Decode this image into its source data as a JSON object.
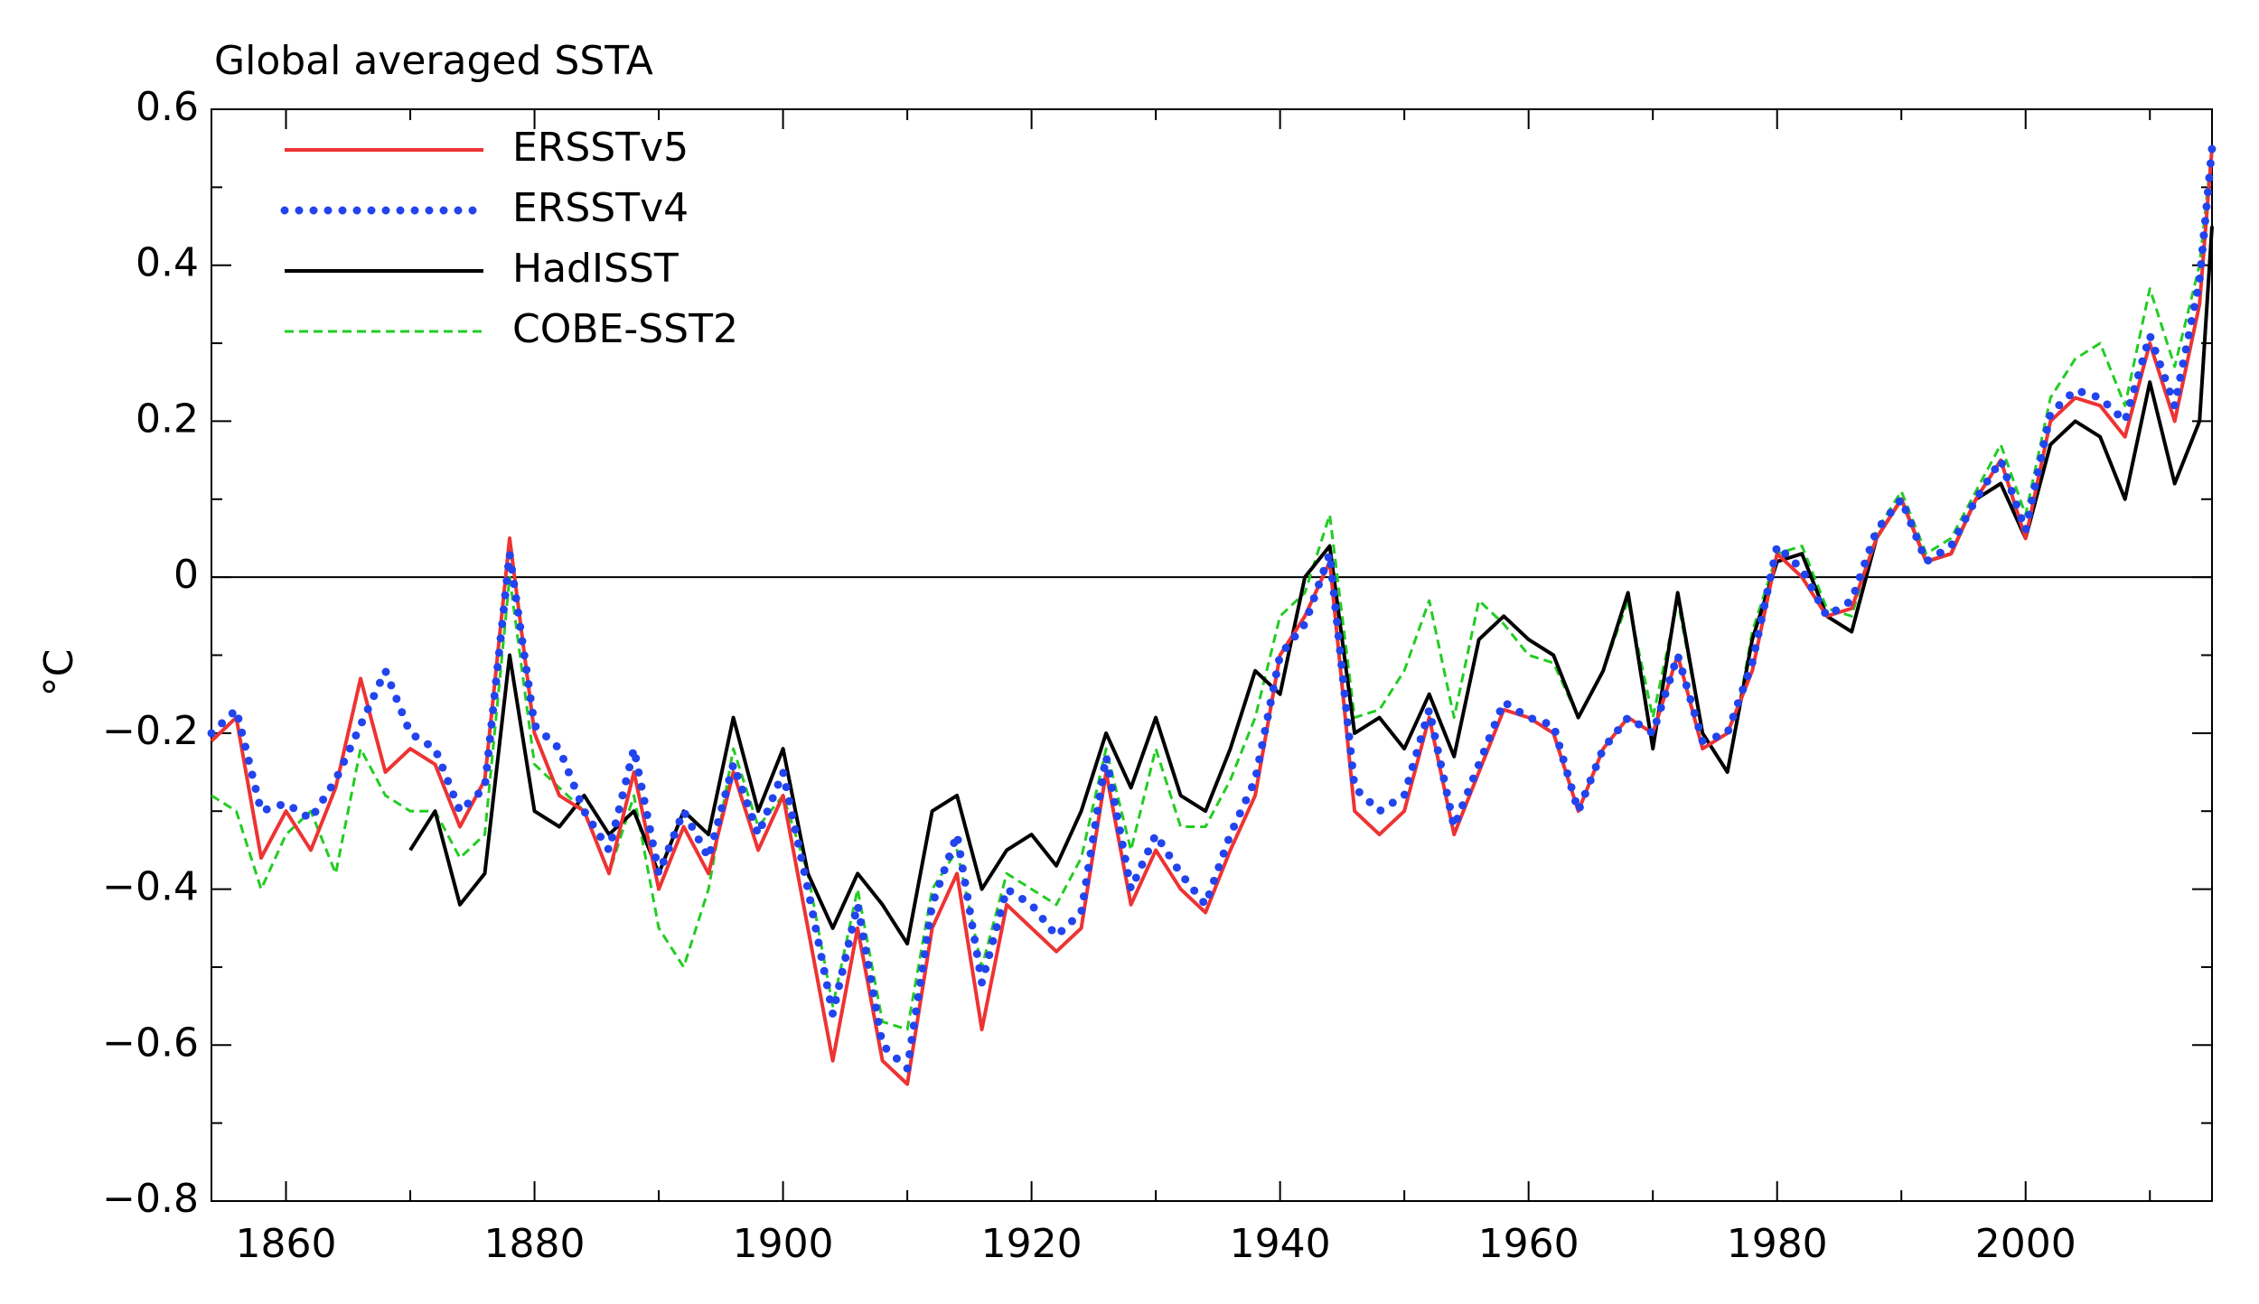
{
  "chart_data": {
    "type": "line",
    "title": "Global averaged SSTA",
    "y_label": "°C",
    "x": [
      1854,
      1856,
      1858,
      1860,
      1862,
      1864,
      1866,
      1868,
      1870,
      1872,
      1874,
      1876,
      1878,
      1880,
      1882,
      1884,
      1886,
      1888,
      1890,
      1892,
      1894,
      1896,
      1898,
      1900,
      1902,
      1904,
      1906,
      1908,
      1910,
      1912,
      1914,
      1916,
      1918,
      1920,
      1922,
      1924,
      1926,
      1928,
      1930,
      1932,
      1934,
      1936,
      1938,
      1940,
      1942,
      1944,
      1946,
      1948,
      1950,
      1952,
      1954,
      1956,
      1958,
      1960,
      1962,
      1964,
      1966,
      1968,
      1970,
      1972,
      1974,
      1976,
      1978,
      1980,
      1982,
      1984,
      1986,
      1988,
      1990,
      1992,
      1994,
      1996,
      1998,
      2000,
      2002,
      2004,
      2006,
      2008,
      2010,
      2012,
      2014,
      2015
    ],
    "series": [
      {
        "name": "ERSSTv5",
        "color": "#ee3333",
        "style": "solid",
        "values": [
          -0.21,
          -0.18,
          -0.36,
          -0.3,
          -0.35,
          -0.27,
          -0.13,
          -0.25,
          -0.22,
          -0.24,
          -0.32,
          -0.26,
          0.05,
          -0.2,
          -0.28,
          -0.3,
          -0.38,
          -0.25,
          -0.4,
          -0.32,
          -0.38,
          -0.25,
          -0.35,
          -0.28,
          -0.45,
          -0.62,
          -0.45,
          -0.62,
          -0.65,
          -0.45,
          -0.38,
          -0.58,
          -0.42,
          -0.45,
          -0.48,
          -0.45,
          -0.25,
          -0.42,
          -0.35,
          -0.4,
          -0.43,
          -0.35,
          -0.28,
          -0.1,
          -0.05,
          0.02,
          -0.3,
          -0.33,
          -0.3,
          -0.18,
          -0.33,
          -0.25,
          -0.17,
          -0.18,
          -0.2,
          -0.3,
          -0.22,
          -0.18,
          -0.2,
          -0.1,
          -0.22,
          -0.2,
          -0.12,
          0.03,
          0.0,
          -0.05,
          -0.04,
          0.05,
          0.1,
          0.02,
          0.03,
          0.1,
          0.15,
          0.05,
          0.2,
          0.23,
          0.22,
          0.18,
          0.3,
          0.2,
          0.35,
          0.55
        ]
      },
      {
        "name": "ERSSTv4",
        "color": "#2244ee",
        "style": "dotted",
        "values": [
          -0.2,
          -0.17,
          -0.3,
          -0.29,
          -0.31,
          -0.26,
          -0.19,
          -0.12,
          -0.2,
          -0.22,
          -0.3,
          -0.27,
          0.03,
          -0.19,
          -0.22,
          -0.3,
          -0.35,
          -0.22,
          -0.38,
          -0.3,
          -0.36,
          -0.24,
          -0.33,
          -0.25,
          -0.4,
          -0.56,
          -0.42,
          -0.6,
          -0.63,
          -0.42,
          -0.33,
          -0.52,
          -0.4,
          -0.42,
          -0.46,
          -0.43,
          -0.23,
          -0.4,
          -0.33,
          -0.38,
          -0.42,
          -0.33,
          -0.26,
          -0.1,
          -0.06,
          0.03,
          -0.27,
          -0.3,
          -0.28,
          -0.17,
          -0.32,
          -0.24,
          -0.16,
          -0.18,
          -0.19,
          -0.3,
          -0.22,
          -0.18,
          -0.2,
          -0.1,
          -0.21,
          -0.2,
          -0.11,
          0.04,
          0.01,
          -0.05,
          -0.03,
          0.06,
          0.1,
          0.02,
          0.04,
          0.1,
          0.15,
          0.06,
          0.21,
          0.24,
          0.23,
          0.2,
          0.31,
          0.22,
          0.38,
          0.55
        ]
      },
      {
        "name": "HadISST",
        "color": "#000000",
        "style": "solid",
        "values": [
          null,
          null,
          null,
          null,
          null,
          null,
          null,
          null,
          -0.35,
          -0.3,
          -0.42,
          -0.38,
          -0.1,
          -0.3,
          -0.32,
          -0.28,
          -0.33,
          -0.3,
          -0.38,
          -0.3,
          -0.33,
          -0.18,
          -0.3,
          -0.22,
          -0.38,
          -0.45,
          -0.38,
          -0.42,
          -0.47,
          -0.3,
          -0.28,
          -0.4,
          -0.35,
          -0.33,
          -0.37,
          -0.3,
          -0.2,
          -0.27,
          -0.18,
          -0.28,
          -0.3,
          -0.22,
          -0.12,
          -0.15,
          0.0,
          0.04,
          -0.2,
          -0.18,
          -0.22,
          -0.15,
          -0.23,
          -0.08,
          -0.05,
          -0.08,
          -0.1,
          -0.18,
          -0.12,
          -0.02,
          -0.22,
          -0.02,
          -0.2,
          -0.25,
          -0.08,
          0.02,
          0.03,
          -0.05,
          -0.07,
          0.05,
          0.1,
          0.02,
          0.03,
          0.1,
          0.12,
          0.05,
          0.17,
          0.2,
          0.18,
          0.1,
          0.25,
          0.12,
          0.2,
          0.45
        ]
      },
      {
        "name": "COBE-SST2",
        "color": "#22cc22",
        "style": "dashed",
        "values": [
          -0.28,
          -0.3,
          -0.4,
          -0.33,
          -0.3,
          -0.38,
          -0.22,
          -0.28,
          -0.3,
          -0.3,
          -0.36,
          -0.33,
          0.0,
          -0.24,
          -0.27,
          -0.3,
          -0.38,
          -0.28,
          -0.45,
          -0.5,
          -0.4,
          -0.22,
          -0.32,
          -0.28,
          -0.38,
          -0.55,
          -0.4,
          -0.57,
          -0.58,
          -0.4,
          -0.35,
          -0.5,
          -0.38,
          -0.4,
          -0.42,
          -0.36,
          -0.22,
          -0.35,
          -0.22,
          -0.32,
          -0.32,
          -0.26,
          -0.18,
          -0.05,
          -0.02,
          0.08,
          -0.18,
          -0.17,
          -0.12,
          -0.03,
          -0.18,
          -0.03,
          -0.06,
          -0.1,
          -0.11,
          -0.18,
          -0.12,
          -0.03,
          -0.18,
          -0.03,
          -0.2,
          -0.25,
          -0.07,
          0.03,
          0.04,
          -0.04,
          -0.05,
          0.06,
          0.11,
          0.03,
          0.05,
          0.11,
          0.17,
          0.08,
          0.23,
          0.28,
          0.3,
          0.22,
          0.37,
          0.27,
          0.4,
          0.55
        ]
      }
    ],
    "xlim": [
      1854,
      2015
    ],
    "ylim": [
      -0.8,
      0.6
    ],
    "xticks": [
      1860,
      1880,
      1900,
      1920,
      1940,
      1960,
      1980,
      2000
    ],
    "yticks": [
      0.6,
      0.4,
      0.2,
      0,
      {
        "value": -0.2,
        "label": "−0.2"
      },
      {
        "value": -0.4,
        "label": "−0.4"
      },
      {
        "value": -0.6,
        "label": "−0.6"
      },
      {
        "value": -0.8,
        "label": "−0.8"
      }
    ],
    "zero_line": true,
    "legend": "upper left"
  }
}
